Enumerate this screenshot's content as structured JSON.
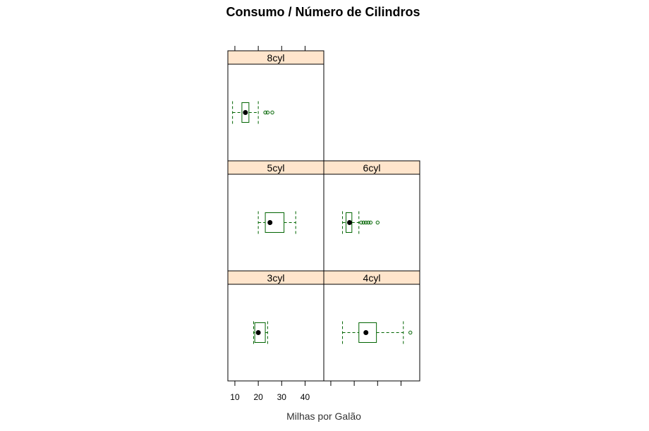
{
  "chart_data": {
    "type": "boxplot",
    "title": "Consumo / Número de Cilindros",
    "xlabel": "Milhas por Galão",
    "xticks": [
      "10",
      "20",
      "30",
      "40"
    ],
    "xlim": [
      7,
      48
    ],
    "panels": [
      {
        "label": "8cyl",
        "whisker_low": 9,
        "q1": 13,
        "median": 14.5,
        "q3": 16,
        "whisker_high": 20,
        "outliers": [
          23,
          24,
          26
        ]
      },
      {
        "label": "5cyl",
        "whisker_low": 20,
        "q1": 23,
        "median": 25,
        "q3": 31,
        "whisker_high": 36,
        "outliers": []
      },
      {
        "label": "6cyl",
        "whisker_low": 15,
        "q1": 16.5,
        "median": 18,
        "q3": 19,
        "whisker_high": 22,
        "outliers": [
          23,
          24,
          25,
          26,
          27,
          30
        ]
      },
      {
        "label": "3cyl",
        "whisker_low": 18,
        "q1": 18.5,
        "median": 20,
        "q3": 23,
        "whisker_high": 24,
        "outliers": []
      },
      {
        "label": "4cyl",
        "whisker_low": 15,
        "q1": 22,
        "median": 25,
        "q3": 29.5,
        "whisker_high": 41,
        "outliers": [
          44
        ]
      }
    ],
    "colors": {
      "box": "#006400",
      "median_dot": "#000000",
      "strip_fill": "#ffe5cc",
      "frame": "#000000"
    },
    "grid": false,
    "legend": "none"
  }
}
